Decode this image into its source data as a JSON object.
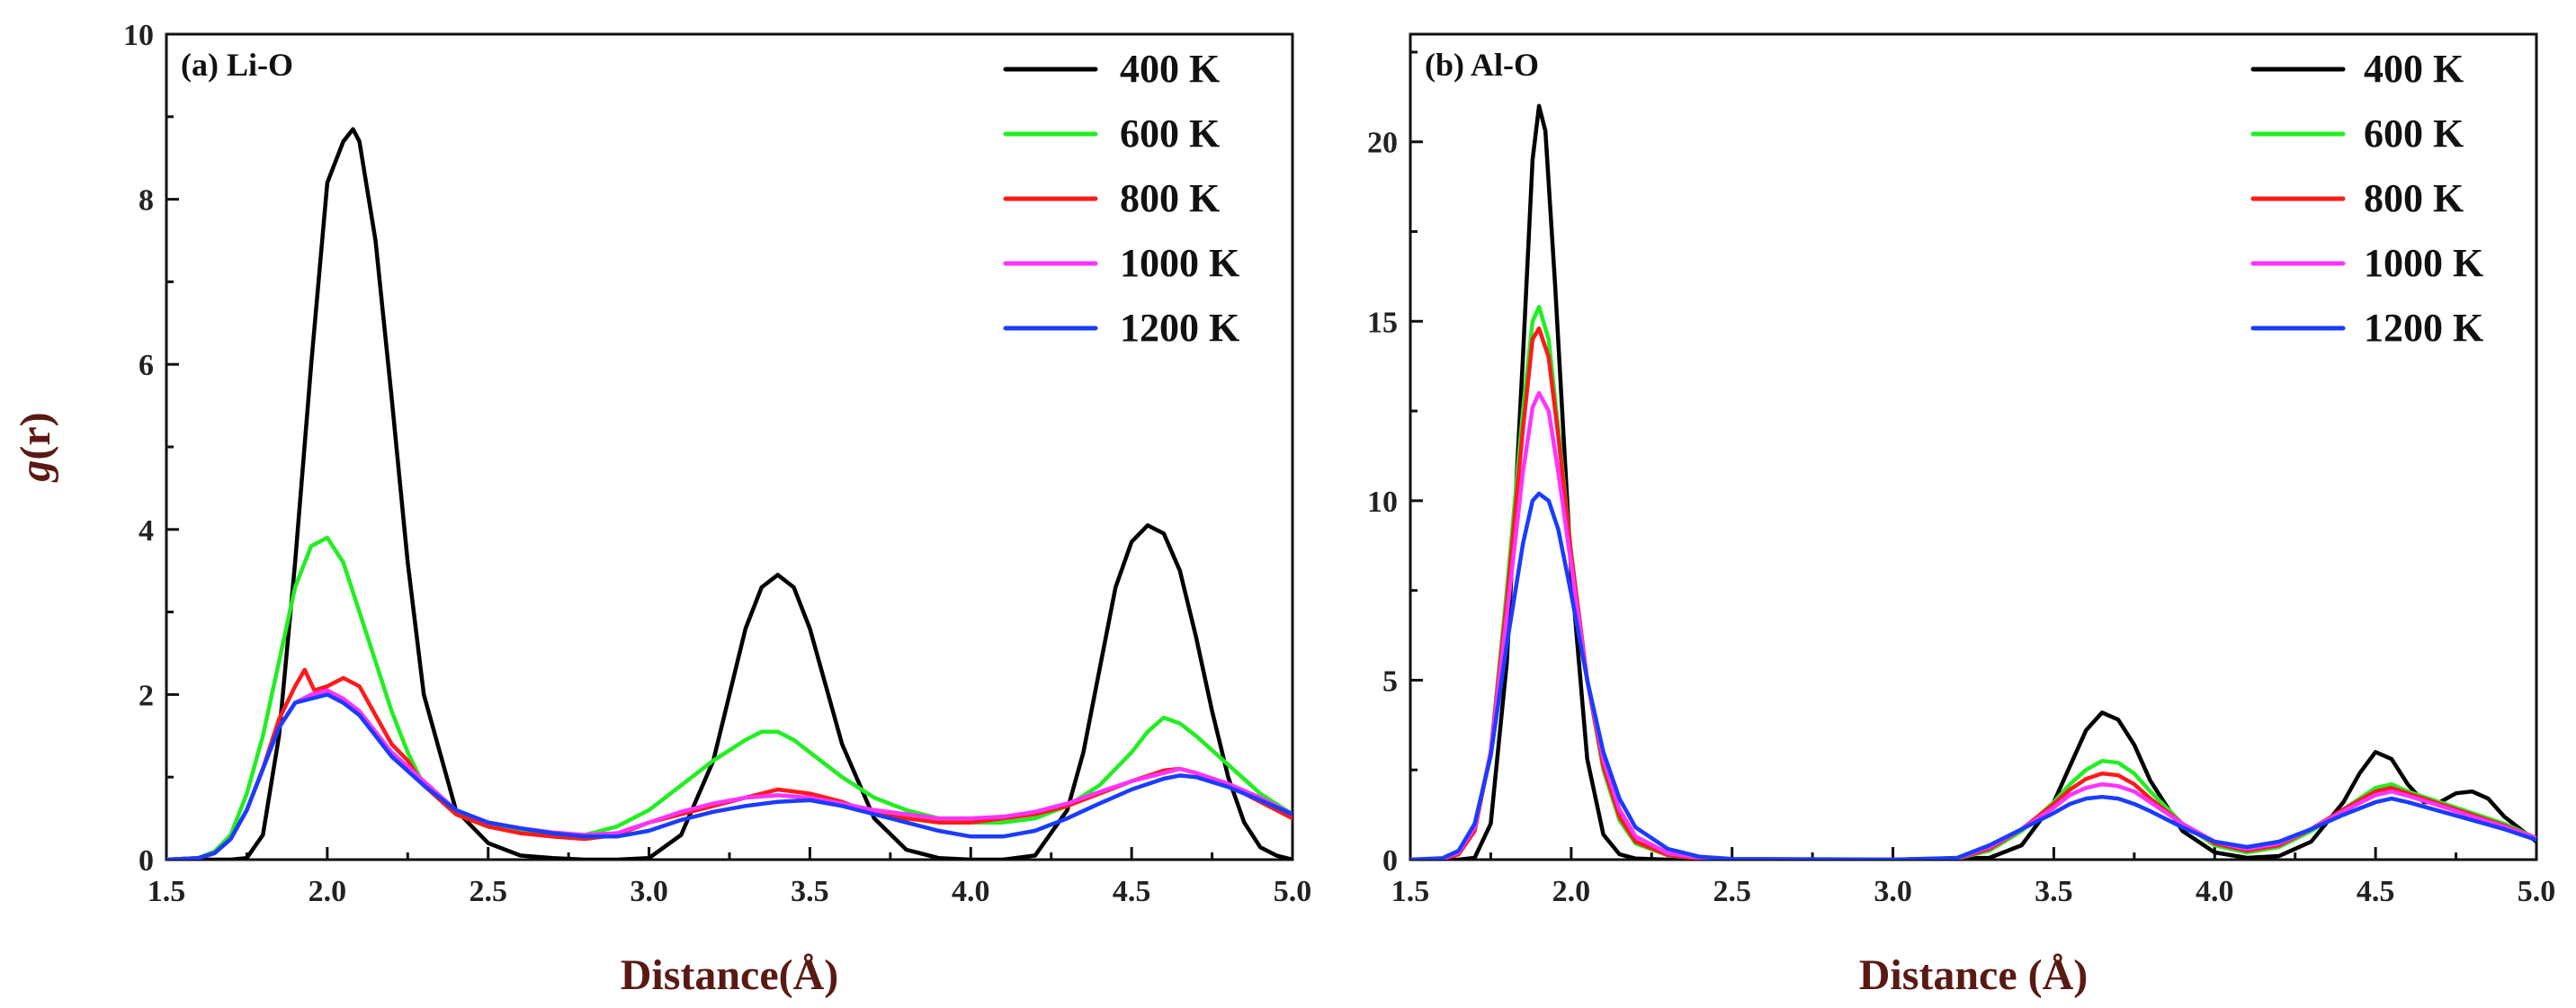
{
  "colors": {
    "400 K": "#000000",
    "600 K": "#22ee22",
    "800 K": "#ff1a1a",
    "1000 K": "#ff33ff",
    "1200 K": "#1a3cff"
  },
  "chart_data": [
    {
      "id": "a",
      "type": "line",
      "title": "(a) Li-O",
      "xlabel": "Distance(Å)",
      "ylabel": "g(r)",
      "xlim": [
        1.5,
        5.0
      ],
      "ylim": [
        0,
        10
      ],
      "xticks": [
        "1.5",
        "2.0",
        "2.5",
        "3.0",
        "3.5",
        "4.0",
        "4.5",
        "5.0"
      ],
      "yticks": [
        "0",
        "2",
        "4",
        "6",
        "8",
        "10"
      ],
      "legend_position": "top-right",
      "series": [
        {
          "name": "400 K",
          "x": [
            1.5,
            1.7,
            1.75,
            1.8,
            1.85,
            1.9,
            1.95,
            2.0,
            2.05,
            2.08,
            2.1,
            2.15,
            2.2,
            2.25,
            2.3,
            2.4,
            2.5,
            2.6,
            2.7,
            2.8,
            2.9,
            3.0,
            3.1,
            3.2,
            3.25,
            3.3,
            3.35,
            3.4,
            3.45,
            3.5,
            3.55,
            3.6,
            3.7,
            3.8,
            3.9,
            4.0,
            4.1,
            4.2,
            4.3,
            4.35,
            4.4,
            4.45,
            4.5,
            4.55,
            4.6,
            4.65,
            4.7,
            4.75,
            4.8,
            4.85,
            4.9,
            4.95,
            5.0
          ],
          "y": [
            0,
            0,
            0.02,
            0.3,
            1.5,
            3.6,
            6.0,
            8.2,
            8.7,
            8.85,
            8.7,
            7.5,
            5.6,
            3.6,
            2.0,
            0.6,
            0.2,
            0.05,
            0.02,
            0.0,
            0.0,
            0.02,
            0.3,
            1.2,
            2.0,
            2.8,
            3.3,
            3.45,
            3.3,
            2.8,
            2.1,
            1.4,
            0.5,
            0.12,
            0.02,
            0.0,
            0.0,
            0.05,
            0.6,
            1.3,
            2.3,
            3.3,
            3.85,
            4.05,
            3.95,
            3.5,
            2.7,
            1.8,
            1.0,
            0.45,
            0.15,
            0.05,
            0.0
          ]
        },
        {
          "name": "600 K",
          "x": [
            1.5,
            1.6,
            1.65,
            1.7,
            1.75,
            1.8,
            1.85,
            1.9,
            1.95,
            2.0,
            2.05,
            2.1,
            2.15,
            2.2,
            2.25,
            2.3,
            2.4,
            2.5,
            2.6,
            2.7,
            2.8,
            2.9,
            3.0,
            3.1,
            3.2,
            3.3,
            3.35,
            3.4,
            3.45,
            3.5,
            3.6,
            3.7,
            3.8,
            3.9,
            4.0,
            4.1,
            4.2,
            4.3,
            4.4,
            4.5,
            4.55,
            4.6,
            4.65,
            4.7,
            4.8,
            4.9,
            5.0
          ],
          "y": [
            0,
            0.02,
            0.1,
            0.3,
            0.8,
            1.5,
            2.4,
            3.3,
            3.8,
            3.9,
            3.6,
            3.0,
            2.4,
            1.8,
            1.3,
            0.9,
            0.55,
            0.4,
            0.35,
            0.3,
            0.3,
            0.4,
            0.6,
            0.9,
            1.2,
            1.45,
            1.55,
            1.55,
            1.45,
            1.3,
            1.0,
            0.75,
            0.6,
            0.5,
            0.45,
            0.45,
            0.5,
            0.65,
            0.9,
            1.3,
            1.55,
            1.72,
            1.65,
            1.5,
            1.15,
            0.8,
            0.55
          ]
        },
        {
          "name": "800 K",
          "x": [
            1.5,
            1.6,
            1.65,
            1.7,
            1.75,
            1.8,
            1.85,
            1.9,
            1.93,
            1.96,
            2.0,
            2.05,
            2.1,
            2.15,
            2.2,
            2.25,
            2.3,
            2.4,
            2.5,
            2.6,
            2.7,
            2.8,
            2.9,
            3.0,
            3.1,
            3.2,
            3.3,
            3.4,
            3.5,
            3.6,
            3.7,
            3.8,
            3.9,
            4.0,
            4.1,
            4.2,
            4.3,
            4.4,
            4.5,
            4.6,
            4.65,
            4.7,
            4.8,
            4.9,
            5.0
          ],
          "y": [
            0,
            0.02,
            0.08,
            0.25,
            0.6,
            1.1,
            1.7,
            2.1,
            2.3,
            2.05,
            2.1,
            2.2,
            2.1,
            1.75,
            1.4,
            1.2,
            0.9,
            0.55,
            0.4,
            0.32,
            0.28,
            0.25,
            0.3,
            0.45,
            0.55,
            0.65,
            0.75,
            0.85,
            0.8,
            0.7,
            0.55,
            0.5,
            0.45,
            0.45,
            0.5,
            0.55,
            0.65,
            0.8,
            0.95,
            1.08,
            1.1,
            1.05,
            0.9,
            0.7,
            0.5
          ]
        },
        {
          "name": "1000 K",
          "x": [
            1.5,
            1.6,
            1.65,
            1.7,
            1.75,
            1.8,
            1.85,
            1.9,
            1.95,
            2.0,
            2.05,
            2.1,
            2.15,
            2.2,
            2.3,
            2.4,
            2.5,
            2.6,
            2.7,
            2.8,
            2.9,
            3.0,
            3.1,
            3.2,
            3.3,
            3.4,
            3.5,
            3.6,
            3.7,
            3.8,
            3.9,
            4.0,
            4.1,
            4.2,
            4.3,
            4.4,
            4.5,
            4.6,
            4.65,
            4.7,
            4.8,
            4.9,
            5.0
          ],
          "y": [
            0,
            0.02,
            0.08,
            0.25,
            0.6,
            1.1,
            1.6,
            1.9,
            2.0,
            2.05,
            1.95,
            1.8,
            1.55,
            1.3,
            0.95,
            0.6,
            0.45,
            0.38,
            0.33,
            0.3,
            0.32,
            0.45,
            0.58,
            0.68,
            0.75,
            0.78,
            0.75,
            0.68,
            0.6,
            0.55,
            0.5,
            0.5,
            0.52,
            0.58,
            0.68,
            0.82,
            0.95,
            1.05,
            1.1,
            1.05,
            0.92,
            0.75,
            0.55
          ]
        },
        {
          "name": "1200 K",
          "x": [
            1.5,
            1.6,
            1.65,
            1.7,
            1.75,
            1.8,
            1.85,
            1.9,
            1.95,
            2.0,
            2.05,
            2.1,
            2.15,
            2.2,
            2.3,
            2.4,
            2.5,
            2.6,
            2.7,
            2.8,
            2.9,
            3.0,
            3.1,
            3.2,
            3.3,
            3.4,
            3.5,
            3.6,
            3.7,
            3.8,
            3.9,
            4.0,
            4.1,
            4.2,
            4.3,
            4.4,
            4.5,
            4.6,
            4.65,
            4.7,
            4.8,
            4.9,
            5.0
          ],
          "y": [
            0,
            0.02,
            0.08,
            0.25,
            0.6,
            1.1,
            1.6,
            1.9,
            1.95,
            2.0,
            1.9,
            1.75,
            1.5,
            1.25,
            0.9,
            0.6,
            0.45,
            0.38,
            0.32,
            0.28,
            0.28,
            0.35,
            0.48,
            0.58,
            0.65,
            0.7,
            0.72,
            0.65,
            0.55,
            0.45,
            0.35,
            0.28,
            0.28,
            0.35,
            0.5,
            0.68,
            0.85,
            0.98,
            1.02,
            1.0,
            0.88,
            0.72,
            0.55
          ]
        }
      ]
    },
    {
      "id": "b",
      "type": "line",
      "title": "(b) Al-O",
      "xlabel": "Distance (Å)",
      "ylabel": "",
      "xlim": [
        1.5,
        5.0
      ],
      "ylim": [
        0,
        23
      ],
      "xticks": [
        "1.5",
        "2.0",
        "2.5",
        "3.0",
        "3.5",
        "4.0",
        "4.5",
        "5.0"
      ],
      "yticks": [
        "0",
        "5",
        "10",
        "15",
        "20"
      ],
      "legend_position": "top-right",
      "series": [
        {
          "name": "400 K",
          "x": [
            1.5,
            1.65,
            1.7,
            1.75,
            1.8,
            1.85,
            1.88,
            1.9,
            1.92,
            1.95,
            2.0,
            2.05,
            2.1,
            2.15,
            2.2,
            2.3,
            2.5,
            3.0,
            3.3,
            3.4,
            3.5,
            3.55,
            3.6,
            3.65,
            3.7,
            3.75,
            3.8,
            3.9,
            4.0,
            4.1,
            4.2,
            4.3,
            4.4,
            4.45,
            4.5,
            4.55,
            4.6,
            4.65,
            4.7,
            4.75,
            4.8,
            4.85,
            4.9,
            5.0
          ],
          "y": [
            0,
            0,
            0.05,
            1.0,
            5.5,
            14.0,
            19.5,
            21.0,
            20.3,
            16.0,
            8.0,
            2.8,
            0.7,
            0.15,
            0.03,
            0,
            0,
            0,
            0.05,
            0.4,
            1.6,
            2.6,
            3.6,
            4.1,
            3.9,
            3.2,
            2.2,
            0.8,
            0.2,
            0.05,
            0.1,
            0.5,
            1.6,
            2.4,
            3.0,
            2.8,
            2.1,
            1.6,
            1.6,
            1.85,
            1.9,
            1.7,
            1.2,
            0.5
          ]
        },
        {
          "name": "600 K",
          "x": [
            1.5,
            1.6,
            1.65,
            1.7,
            1.75,
            1.8,
            1.85,
            1.88,
            1.9,
            1.93,
            1.96,
            2.0,
            2.05,
            2.1,
            2.15,
            2.2,
            2.3,
            2.4,
            2.5,
            3.0,
            3.2,
            3.3,
            3.4,
            3.5,
            3.55,
            3.6,
            3.65,
            3.7,
            3.75,
            3.8,
            3.9,
            4.0,
            4.1,
            4.2,
            4.3,
            4.4,
            4.5,
            4.55,
            4.6,
            4.7,
            4.8,
            4.9,
            5.0
          ],
          "y": [
            0,
            0.02,
            0.15,
            0.8,
            3.0,
            7.5,
            12.5,
            15.0,
            15.4,
            14.5,
            12.0,
            8.5,
            5.0,
            2.5,
            1.1,
            0.45,
            0.12,
            0.03,
            0,
            0,
            0.03,
            0.25,
            0.8,
            1.6,
            2.1,
            2.5,
            2.75,
            2.7,
            2.4,
            1.9,
            1.0,
            0.4,
            0.2,
            0.35,
            0.8,
            1.4,
            2.0,
            2.1,
            1.9,
            1.6,
            1.3,
            1.0,
            0.6
          ]
        },
        {
          "name": "800 K",
          "x": [
            1.5,
            1.6,
            1.65,
            1.7,
            1.75,
            1.8,
            1.85,
            1.88,
            1.9,
            1.93,
            1.96,
            2.0,
            2.05,
            2.1,
            2.15,
            2.2,
            2.3,
            2.4,
            2.5,
            3.0,
            3.2,
            3.3,
            3.4,
            3.5,
            3.55,
            3.6,
            3.65,
            3.7,
            3.75,
            3.8,
            3.9,
            4.0,
            4.1,
            4.2,
            4.3,
            4.4,
            4.5,
            4.55,
            4.6,
            4.7,
            4.8,
            4.9,
            5.0
          ],
          "y": [
            0,
            0.02,
            0.15,
            0.8,
            3.0,
            7.2,
            12.0,
            14.5,
            14.8,
            14.0,
            11.8,
            8.5,
            5.0,
            2.6,
            1.2,
            0.5,
            0.13,
            0.03,
            0,
            0,
            0.03,
            0.3,
            0.85,
            1.55,
            1.95,
            2.25,
            2.4,
            2.35,
            2.1,
            1.7,
            1.0,
            0.45,
            0.25,
            0.4,
            0.85,
            1.4,
            1.9,
            2.0,
            1.85,
            1.55,
            1.25,
            0.95,
            0.6
          ]
        },
        {
          "name": "1000 K",
          "x": [
            1.5,
            1.6,
            1.65,
            1.7,
            1.75,
            1.8,
            1.85,
            1.88,
            1.9,
            1.93,
            1.96,
            2.0,
            2.05,
            2.1,
            2.15,
            2.2,
            2.3,
            2.4,
            2.5,
            3.0,
            3.2,
            3.3,
            3.4,
            3.5,
            3.55,
            3.6,
            3.65,
            3.7,
            3.75,
            3.8,
            3.9,
            4.0,
            4.1,
            4.2,
            4.3,
            4.4,
            4.5,
            4.55,
            4.6,
            4.7,
            4.8,
            4.9,
            5.0
          ],
          "y": [
            0,
            0.03,
            0.2,
            0.9,
            3.0,
            6.8,
            10.8,
            12.6,
            13.0,
            12.5,
            10.8,
            8.2,
            5.0,
            2.8,
            1.4,
            0.65,
            0.18,
            0.05,
            0.01,
            0,
            0.04,
            0.35,
            0.85,
            1.45,
            1.8,
            2.0,
            2.1,
            2.05,
            1.9,
            1.6,
            1.0,
            0.5,
            0.3,
            0.45,
            0.85,
            1.35,
            1.8,
            1.9,
            1.78,
            1.5,
            1.2,
            0.92,
            0.6
          ]
        },
        {
          "name": "1200 K",
          "x": [
            1.5,
            1.6,
            1.65,
            1.7,
            1.75,
            1.8,
            1.85,
            1.88,
            1.9,
            1.93,
            1.96,
            2.0,
            2.05,
            2.1,
            2.15,
            2.2,
            2.3,
            2.4,
            2.5,
            3.0,
            3.2,
            3.3,
            3.4,
            3.5,
            3.55,
            3.6,
            3.65,
            3.7,
            3.75,
            3.8,
            3.9,
            4.0,
            4.1,
            4.2,
            4.3,
            4.4,
            4.5,
            4.55,
            4.6,
            4.7,
            4.8,
            4.9,
            5.0
          ],
          "y": [
            0,
            0.04,
            0.25,
            1.0,
            2.9,
            6.0,
            8.8,
            10.0,
            10.2,
            10.0,
            9.2,
            7.4,
            5.0,
            3.0,
            1.7,
            0.9,
            0.3,
            0.08,
            0.02,
            0,
            0.05,
            0.4,
            0.85,
            1.3,
            1.55,
            1.7,
            1.75,
            1.7,
            1.55,
            1.35,
            0.9,
            0.5,
            0.35,
            0.5,
            0.85,
            1.25,
            1.6,
            1.7,
            1.6,
            1.35,
            1.1,
            0.85,
            0.55
          ]
        }
      ]
    }
  ]
}
